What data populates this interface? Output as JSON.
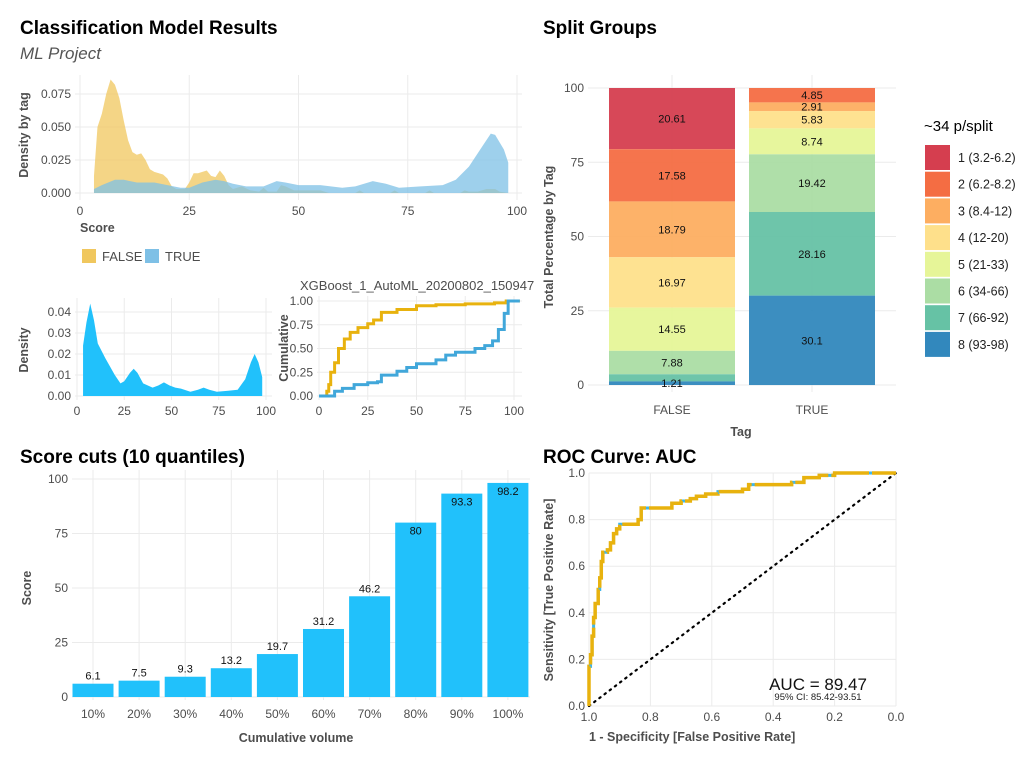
{
  "page": {
    "title": "Classification Model Results",
    "subtitle": "ML Project"
  },
  "chart_data": [
    {
      "type": "area",
      "xlabel": "Score",
      "ylabel": "Density by tag",
      "xlim": [
        0,
        100
      ],
      "ylim": [
        0,
        0.088
      ],
      "x_ticks": [
        "0",
        "25",
        "50",
        "75",
        "100"
      ],
      "y_ticks": [
        "0.000",
        "0.025",
        "0.050",
        "0.075"
      ],
      "legend_position": "bottom",
      "grid": true,
      "series": [
        {
          "name": "FALSE",
          "color": "#F0C75E",
          "points": [
            [
              3.2,
              0.013
            ],
            [
              4,
              0.05
            ],
            [
              5,
              0.06
            ],
            [
              6,
              0.075
            ],
            [
              7,
              0.086
            ],
            [
              8,
              0.082
            ],
            [
              9,
              0.072
            ],
            [
              10,
              0.055
            ],
            [
              11,
              0.04
            ],
            [
              12,
              0.031
            ],
            [
              13,
              0.029
            ],
            [
              14,
              0.03
            ],
            [
              15,
              0.025
            ],
            [
              16,
              0.018
            ],
            [
              17,
              0.016
            ],
            [
              19,
              0.014
            ],
            [
              20,
              0.011
            ],
            [
              21,
              0.005
            ],
            [
              22,
              0.003
            ],
            [
              24,
              0.003
            ],
            [
              25,
              0.008
            ],
            [
              26,
              0.015
            ],
            [
              27,
              0.015
            ],
            [
              28,
              0.016
            ],
            [
              29,
              0.017
            ],
            [
              30,
              0.013
            ],
            [
              31,
              0.012
            ],
            [
              32,
              0.017
            ],
            [
              33,
              0.013
            ],
            [
              34,
              0.006
            ],
            [
              35,
              0.003
            ],
            [
              37,
              0.005
            ],
            [
              39,
              0.002
            ],
            [
              41,
              0.001
            ],
            [
              42,
              0.004
            ],
            [
              43,
              0.001
            ],
            [
              45,
              0.001
            ],
            [
              46,
              0.006
            ],
            [
              47,
              0.005
            ],
            [
              49,
              0.002
            ],
            [
              55,
              0.002
            ],
            [
              57,
              0
            ],
            [
              63,
              0
            ],
            [
              64,
              0.002
            ],
            [
              65,
              0
            ],
            [
              71,
              0
            ],
            [
              72,
              0.002
            ],
            [
              73,
              0
            ],
            [
              79,
              0
            ],
            [
              80,
              0.002
            ],
            [
              81,
              0
            ],
            [
              87,
              0
            ],
            [
              88,
              0.002
            ],
            [
              89,
              0.001
            ],
            [
              91,
              0.001
            ],
            [
              93,
              0.003
            ],
            [
              95,
              0.003
            ],
            [
              96,
              0.001
            ],
            [
              98,
              0
            ]
          ]
        },
        {
          "name": "TRUE",
          "color": "#7EC0E6",
          "points": [
            [
              3.2,
              0.003
            ],
            [
              5,
              0.006
            ],
            [
              8,
              0.01
            ],
            [
              10,
              0.01
            ],
            [
              13,
              0.008
            ],
            [
              17,
              0.008
            ],
            [
              20,
              0.006
            ],
            [
              23,
              0.004
            ],
            [
              25,
              0.004
            ],
            [
              28,
              0.008
            ],
            [
              31,
              0.01
            ],
            [
              33,
              0.009
            ],
            [
              35,
              0.007
            ],
            [
              38,
              0.005
            ],
            [
              42,
              0.005
            ],
            [
              45,
              0.009
            ],
            [
              47,
              0.008
            ],
            [
              50,
              0.006
            ],
            [
              55,
              0.006
            ],
            [
              60,
              0.004
            ],
            [
              63,
              0.005
            ],
            [
              67,
              0.009
            ],
            [
              70,
              0.007
            ],
            [
              73,
              0.004
            ],
            [
              78,
              0.005
            ],
            [
              83,
              0.006
            ],
            [
              86,
              0.01
            ],
            [
              89,
              0.02
            ],
            [
              92,
              0.035
            ],
            [
              94,
              0.045
            ],
            [
              95,
              0.044
            ],
            [
              97,
              0.033
            ],
            [
              98,
              0.023
            ]
          ]
        }
      ]
    },
    {
      "type": "area",
      "xlabel": "",
      "ylabel": "Density",
      "xlim": [
        0,
        100
      ],
      "ylim": [
        0,
        0.045
      ],
      "x_ticks": [
        "0",
        "25",
        "50",
        "75",
        "100"
      ],
      "y_ticks": [
        "0.00",
        "0.01",
        "0.02",
        "0.03",
        "0.04"
      ],
      "grid": true,
      "series": [
        {
          "color": "#21C1FB",
          "points": [
            [
              3.2,
              0.024
            ],
            [
              5,
              0.035
            ],
            [
              7,
              0.044
            ],
            [
              9,
              0.036
            ],
            [
              11,
              0.025
            ],
            [
              15,
              0.018
            ],
            [
              20,
              0.01
            ],
            [
              23,
              0.006
            ],
            [
              25,
              0.007
            ],
            [
              28,
              0.011
            ],
            [
              30,
              0.013
            ],
            [
              32,
              0.011
            ],
            [
              35,
              0.006
            ],
            [
              40,
              0.004
            ],
            [
              43,
              0.005
            ],
            [
              46,
              0.0065
            ],
            [
              49,
              0.005
            ],
            [
              52,
              0.004
            ],
            [
              55,
              0.0035
            ],
            [
              60,
              0.002
            ],
            [
              64,
              0.003
            ],
            [
              67,
              0.004
            ],
            [
              70,
              0.003
            ],
            [
              74,
              0.002
            ],
            [
              80,
              0.0025
            ],
            [
              85,
              0.003
            ],
            [
              89,
              0.008
            ],
            [
              92,
              0.016
            ],
            [
              94,
              0.02
            ],
            [
              96,
              0.016
            ],
            [
              98,
              0.009
            ]
          ]
        }
      ]
    },
    {
      "type": "line",
      "title": "XGBoost_1_AutoML_20200802_150947",
      "xlabel": "",
      "ylabel": "Cumulative",
      "xlim": [
        0,
        103
      ],
      "ylim": [
        0,
        1
      ],
      "x_ticks": [
        "0",
        "25",
        "50",
        "75",
        "100"
      ],
      "y_ticks": [
        "0.00",
        "0.25",
        "0.50",
        "0.75",
        "1.00"
      ],
      "grid": true,
      "series": [
        {
          "color": "#E8B20E",
          "points": [
            [
              0,
              0
            ],
            [
              3,
              0
            ],
            [
              4,
              0.05
            ],
            [
              5,
              0.12
            ],
            [
              6,
              0.25
            ],
            [
              8,
              0.35
            ],
            [
              10,
              0.5
            ],
            [
              13,
              0.6
            ],
            [
              16,
              0.67
            ],
            [
              20,
              0.72
            ],
            [
              25,
              0.76
            ],
            [
              28,
              0.8
            ],
            [
              32,
              0.88
            ],
            [
              40,
              0.91
            ],
            [
              50,
              0.95
            ],
            [
              60,
              0.96
            ],
            [
              75,
              0.97
            ],
            [
              90,
              0.98
            ],
            [
              96,
              1
            ],
            [
              103,
              1
            ]
          ]
        },
        {
          "color": "#41A7DA",
          "points": [
            [
              0,
              0
            ],
            [
              6,
              0
            ],
            [
              8,
              0.05
            ],
            [
              12,
              0.08
            ],
            [
              18,
              0.12
            ],
            [
              25,
              0.14
            ],
            [
              30,
              0.15
            ],
            [
              32,
              0.22
            ],
            [
              40,
              0.26
            ],
            [
              45,
              0.3
            ],
            [
              50,
              0.34
            ],
            [
              60,
              0.38
            ],
            [
              65,
              0.43
            ],
            [
              70,
              0.46
            ],
            [
              80,
              0.5
            ],
            [
              85,
              0.53
            ],
            [
              89,
              0.58
            ],
            [
              92,
              0.7
            ],
            [
              95,
              0.87
            ],
            [
              97,
              1
            ],
            [
              103,
              1
            ]
          ]
        }
      ]
    },
    {
      "type": "bar",
      "title": "Score cuts (10 quantiles)",
      "xlabel": "Cumulative volume",
      "ylabel": "Score",
      "ylim": [
        0,
        100
      ],
      "y_ticks": [
        "0",
        "25",
        "50",
        "75",
        "100"
      ],
      "categories": [
        "10%",
        "20%",
        "30%",
        "40%",
        "50%",
        "60%",
        "70%",
        "80%",
        "90%",
        "100%"
      ],
      "values": [
        6.1,
        7.5,
        9.3,
        13.2,
        19.7,
        31.2,
        46.2,
        80,
        93.3,
        98.2
      ],
      "labels": [
        "6.1",
        "7.5",
        "9.3",
        "13.2",
        "19.7",
        "31.2",
        "46.2",
        "80",
        "93.3",
        "98.2"
      ],
      "color": "#21C1FB",
      "grid": true
    },
    {
      "type": "bar",
      "stacked": true,
      "title": "Split Groups",
      "xlabel": "Tag",
      "ylabel": "Total Percentage by Tag",
      "ylim": [
        0,
        100
      ],
      "y_ticks": [
        "0",
        "25",
        "50",
        "75",
        "100"
      ],
      "categories": [
        "FALSE",
        "TRUE"
      ],
      "legend_title": "~34 p/split",
      "legend_position": "right",
      "series": [
        {
          "name": "1 (3.2-6.2)",
          "color": "#D53E4F",
          "values": [
            20.61,
            0
          ],
          "labels": [
            "20.61",
            ""
          ]
        },
        {
          "name": "2 (6.2-8.2)",
          "color": "#F46D43",
          "values": [
            17.58,
            4.85
          ],
          "labels": [
            "17.58",
            "4.85"
          ]
        },
        {
          "name": "3 (8.4-12)",
          "color": "#FDAE61",
          "values": [
            18.79,
            2.91
          ],
          "labels": [
            "18.79",
            "2.91"
          ]
        },
        {
          "name": "4 (12-20)",
          "color": "#FEE08B",
          "values": [
            16.97,
            5.83
          ],
          "labels": [
            "16.97",
            "5.83"
          ]
        },
        {
          "name": "5 (21-33)",
          "color": "#E6F598",
          "values": [
            14.55,
            8.74
          ],
          "labels": [
            "14.55",
            "8.74"
          ]
        },
        {
          "name": "6 (34-66)",
          "color": "#ABDDA4",
          "values": [
            7.88,
            19.42
          ],
          "labels": [
            "7.88",
            "19.42"
          ]
        },
        {
          "name": "7 (66-92)",
          "color": "#66C2A5",
          "values": [
            2.41,
            28.16
          ],
          "labels": [
            "",
            "28.16"
          ]
        },
        {
          "name": "8 (93-98)",
          "color": "#3288BD",
          "values": [
            1.21,
            30.1
          ],
          "labels": [
            "1.21",
            "30.1"
          ]
        }
      ]
    },
    {
      "type": "line",
      "title": "ROC Curve: AUC",
      "xlabel": "1 - Specificity [False Positive Rate]",
      "ylabel": "Sensitivity [True Positive Rate]",
      "xlim": [
        1,
        0
      ],
      "ylim": [
        0,
        1
      ],
      "x_ticks": [
        "1.0",
        "0.8",
        "0.6",
        "0.4",
        "0.2",
        "0.0"
      ],
      "y_ticks": [
        "0.0",
        "0.2",
        "0.4",
        "0.6",
        "0.8",
        "1.0"
      ],
      "annotation": "AUC = 89.47",
      "annotation_ci": "95% CI: 85.42-93.51",
      "color": "#E8B20E",
      "diagonal": true,
      "points": [
        [
          0,
          0
        ],
        [
          0,
          0.17
        ],
        [
          0.005,
          0.22
        ],
        [
          0.01,
          0.3
        ],
        [
          0.015,
          0.38
        ],
        [
          0.02,
          0.44
        ],
        [
          0.03,
          0.5
        ],
        [
          0.035,
          0.55
        ],
        [
          0.04,
          0.62
        ],
        [
          0.045,
          0.66
        ],
        [
          0.06,
          0.67
        ],
        [
          0.07,
          0.7
        ],
        [
          0.08,
          0.74
        ],
        [
          0.09,
          0.76
        ],
        [
          0.1,
          0.78
        ],
        [
          0.15,
          0.78
        ],
        [
          0.16,
          0.8
        ],
        [
          0.17,
          0.85
        ],
        [
          0.25,
          0.85
        ],
        [
          0.27,
          0.87
        ],
        [
          0.3,
          0.88
        ],
        [
          0.33,
          0.89
        ],
        [
          0.35,
          0.9
        ],
        [
          0.38,
          0.91
        ],
        [
          0.42,
          0.92
        ],
        [
          0.5,
          0.93
        ],
        [
          0.52,
          0.95
        ],
        [
          0.6,
          0.95
        ],
        [
          0.66,
          0.96
        ],
        [
          0.7,
          0.98
        ],
        [
          0.75,
          0.99
        ],
        [
          0.8,
          1
        ],
        [
          1,
          1
        ]
      ]
    }
  ]
}
